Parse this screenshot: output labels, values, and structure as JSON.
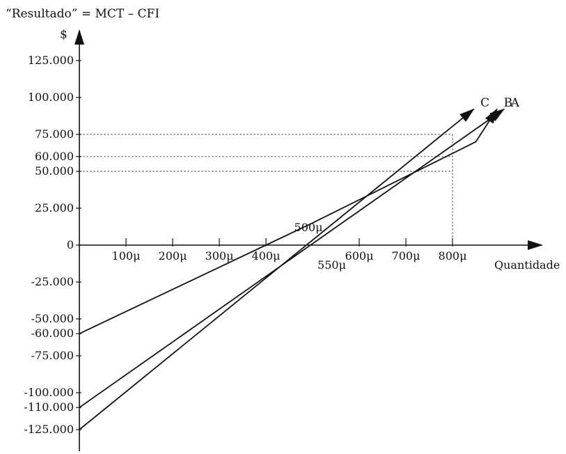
{
  "chart_data": {
    "type": "line",
    "title": "“Resultado” = MCT – CFI",
    "ylabel": "$",
    "xlabel": "Quantidade",
    "xlim": [
      0,
      900
    ],
    "ylim": [
      -140000,
      135000
    ],
    "y_ticks": [
      {
        "value": 125000,
        "label": "125.000"
      },
      {
        "value": 100000,
        "label": "100.000"
      },
      {
        "value": 75000,
        "label": "75.000"
      },
      {
        "value": 60000,
        "label": "60.000"
      },
      {
        "value": 50000,
        "label": "50.000"
      },
      {
        "value": 25000,
        "label": "25.000"
      },
      {
        "value": 0,
        "label": "0"
      },
      {
        "value": -25000,
        "label": "-25.000"
      },
      {
        "value": -50000,
        "label": "-50.000"
      },
      {
        "value": -60000,
        "label": "-60.000"
      },
      {
        "value": -75000,
        "label": "-75.000"
      },
      {
        "value": -100000,
        "label": "-100.000"
      },
      {
        "value": -110000,
        "label": "-110.000"
      },
      {
        "value": -125000,
        "label": "-125.000"
      }
    ],
    "x_ticks": [
      {
        "value": 100,
        "label": "100μ"
      },
      {
        "value": 200,
        "label": "200μ"
      },
      {
        "value": 300,
        "label": "300μ"
      },
      {
        "value": 400,
        "label": "400μ"
      },
      {
        "value": 600,
        "label": "600μ"
      },
      {
        "value": 700,
        "label": "700μ"
      },
      {
        "value": 800,
        "label": "800μ"
      }
    ],
    "guide_lines": [
      {
        "y": 75000,
        "x": 800
      },
      {
        "y": 60000,
        "x": 800
      },
      {
        "y": 50000,
        "x": 800
      },
      {
        "y": 0,
        "x": 800
      }
    ],
    "annotations": [
      {
        "label": "500μ",
        "x": 500,
        "y": 0,
        "pos": "above"
      },
      {
        "label": "550μ",
        "x": 550,
        "y": 0,
        "pos": "below"
      }
    ],
    "series": [
      {
        "name": "A",
        "x": [
          0,
          910
        ],
        "y": [
          -110000,
          92000
        ]
      },
      {
        "name": "B",
        "x": [
          0,
          400,
          500,
          850,
          895
        ],
        "y": [
          -60000,
          0,
          15000,
          70000,
          92000
        ]
      },
      {
        "name": "C",
        "x": [
          0,
          845
        ],
        "y": [
          -125000,
          92000
        ]
      }
    ]
  }
}
